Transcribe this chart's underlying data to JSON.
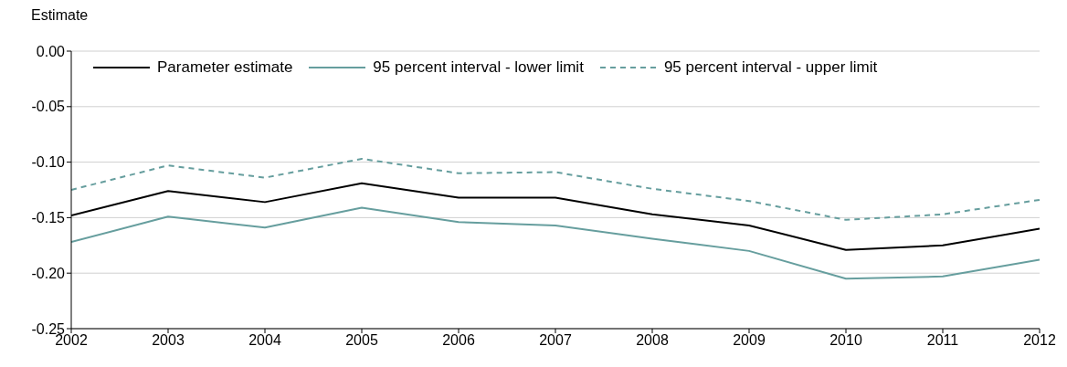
{
  "chart_data": {
    "type": "line",
    "ylabel": "Estimate",
    "x": [
      2002,
      2003,
      2004,
      2005,
      2006,
      2007,
      2008,
      2009,
      2010,
      2011,
      2012
    ],
    "xlim": [
      2002,
      2012
    ],
    "xticks": [
      2002,
      2003,
      2004,
      2005,
      2006,
      2007,
      2008,
      2009,
      2010,
      2011,
      2012
    ],
    "ylim": [
      -0.25,
      0
    ],
    "yticks": [
      {
        "value": -0.25,
        "label": "-0.25"
      },
      {
        "value": -0.2,
        "label": "-0.20"
      },
      {
        "value": -0.15,
        "label": "-0.15"
      },
      {
        "value": -0.1,
        "label": "-0.10"
      },
      {
        "value": -0.05,
        "label": "-0.05"
      },
      {
        "value": 0,
        "label": "0.00"
      }
    ],
    "grid": "y",
    "legend": "top",
    "marker": "none",
    "series": [
      {
        "name": "Parameter estimate",
        "color": "#000000",
        "line_style": "solid",
        "values": [
          -0.148,
          -0.126,
          -0.136,
          -0.119,
          -0.132,
          -0.132,
          -0.147,
          -0.157,
          -0.179,
          -0.175,
          -0.16
        ]
      },
      {
        "name": "95 percent interval - lower limit",
        "color": "#669e9e",
        "line_style": "solid",
        "values": [
          -0.172,
          -0.149,
          -0.159,
          -0.141,
          -0.154,
          -0.157,
          -0.169,
          -0.18,
          -0.205,
          -0.203,
          -0.188
        ]
      },
      {
        "name": "95 percent interval - upper limit",
        "color": "#669e9e",
        "line_style": "dashed",
        "values": [
          -0.125,
          -0.103,
          -0.114,
          -0.097,
          -0.11,
          -0.109,
          -0.124,
          -0.135,
          -0.152,
          -0.147,
          -0.134
        ]
      }
    ]
  }
}
